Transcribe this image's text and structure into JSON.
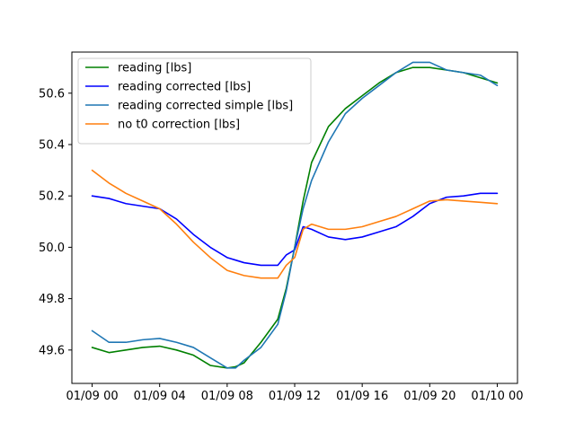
{
  "chart_data": {
    "type": "line",
    "title": "",
    "xlabel": "",
    "ylabel": "",
    "grid": false,
    "legend_position": "upper-left",
    "xlim": [
      -1.2,
      25.2
    ],
    "ylim": [
      49.47,
      50.76
    ],
    "x_ticks": [
      0,
      4,
      8,
      12,
      16,
      20,
      24
    ],
    "x_tick_labels": [
      "01/09 00",
      "01/09 04",
      "01/09 08",
      "01/09 12",
      "01/09 16",
      "01/09 20",
      "01/10 00"
    ],
    "y_ticks": [
      49.6,
      49.8,
      50.0,
      50.2,
      50.4,
      50.6
    ],
    "y_tick_labels": [
      "49.6",
      "49.8",
      "50.0",
      "50.2",
      "50.4",
      "50.6"
    ],
    "x": [
      0,
      1,
      2,
      3,
      4,
      5,
      6,
      7,
      8,
      8.5,
      9,
      10,
      11,
      11.5,
      12,
      12.5,
      13,
      14,
      15,
      16,
      17,
      18,
      19,
      20,
      21,
      22,
      23,
      24
    ],
    "series": [
      {
        "name": "reading [lbs]",
        "color": "#008000",
        "values": [
          49.61,
          49.59,
          49.6,
          49.61,
          49.615,
          49.6,
          49.58,
          49.54,
          49.53,
          49.535,
          49.55,
          49.63,
          49.72,
          49.84,
          50.0,
          50.18,
          50.33,
          50.47,
          50.54,
          50.59,
          50.64,
          50.68,
          50.7,
          50.7,
          50.69,
          50.68,
          50.66,
          50.64
        ]
      },
      {
        "name": "reading corrected [lbs]",
        "color": "#0000ff",
        "values": [
          50.2,
          50.19,
          50.17,
          50.16,
          50.15,
          50.11,
          50.05,
          50.0,
          49.96,
          49.95,
          49.94,
          49.93,
          49.93,
          49.97,
          49.99,
          50.08,
          50.07,
          50.04,
          50.03,
          50.04,
          50.06,
          50.08,
          50.12,
          50.17,
          50.195,
          50.2,
          50.21,
          50.21
        ]
      },
      {
        "name": "reading corrected simple [lbs]",
        "color": "#1f77b4",
        "values": [
          49.675,
          49.63,
          49.63,
          49.64,
          49.645,
          49.63,
          49.61,
          49.57,
          49.53,
          49.53,
          49.56,
          49.61,
          49.7,
          49.83,
          50.0,
          50.15,
          50.26,
          50.41,
          50.52,
          50.58,
          50.63,
          50.68,
          50.72,
          50.72,
          50.69,
          50.68,
          50.67,
          50.63
        ]
      },
      {
        "name": "no t0 correction [lbs]",
        "color": "#ff7f0e",
        "values": [
          50.3,
          50.25,
          50.21,
          50.18,
          50.15,
          50.09,
          50.02,
          49.96,
          49.91,
          49.9,
          49.89,
          49.88,
          49.88,
          49.93,
          49.96,
          50.07,
          50.09,
          50.07,
          50.07,
          50.08,
          50.1,
          50.12,
          50.15,
          50.18,
          50.185,
          50.18,
          50.175,
          50.17
        ]
      }
    ]
  }
}
